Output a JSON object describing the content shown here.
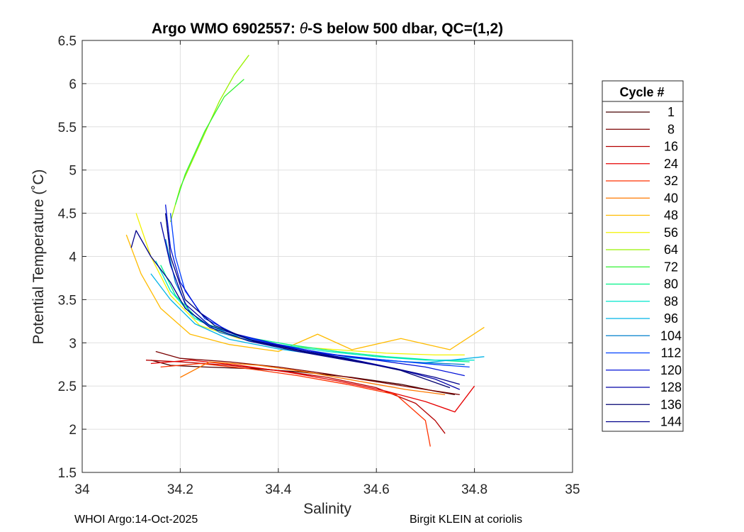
{
  "chart_data": {
    "type": "line",
    "title_prefix": "Argo WMO 6902557: ",
    "title_theta": "θ",
    "title_suffix": "-S below 500 dbar,  QC=(1,2)",
    "xlabel": "Salinity",
    "ylabel": "Potential Temperature (˚C)",
    "xlim": [
      34,
      35
    ],
    "ylim": [
      1.5,
      6.5
    ],
    "xticks": [
      34,
      34.2,
      34.4,
      34.6,
      34.8,
      35
    ],
    "xtick_labels": [
      "34",
      "34.2",
      "34.4",
      "34.6",
      "34.8",
      "35"
    ],
    "yticks": [
      1.5,
      2,
      2.5,
      3,
      3.5,
      4,
      4.5,
      5,
      5.5,
      6,
      6.5
    ],
    "ytick_labels": [
      "1.5",
      "2",
      "2.5",
      "3",
      "3.5",
      "4",
      "4.5",
      "5",
      "5.5",
      "6",
      "6.5"
    ],
    "grid": true,
    "legend_title": "Cycle #",
    "legend_position": "right-outside",
    "series": [
      {
        "name": "1",
        "color": "#460000",
        "points": [
          [
            34.14,
            2.8
          ],
          [
            34.18,
            2.74
          ],
          [
            34.25,
            2.72
          ],
          [
            34.35,
            2.7
          ],
          [
            34.45,
            2.66
          ],
          [
            34.55,
            2.6
          ],
          [
            34.65,
            2.52
          ],
          [
            34.72,
            2.44
          ],
          [
            34.76,
            2.4
          ]
        ]
      },
      {
        "name": "8",
        "color": "#7a0000",
        "points": [
          [
            34.15,
            2.9
          ],
          [
            34.2,
            2.82
          ],
          [
            34.3,
            2.78
          ],
          [
            34.4,
            2.72
          ],
          [
            34.5,
            2.64
          ],
          [
            34.6,
            2.55
          ],
          [
            34.7,
            2.46
          ],
          [
            34.77,
            2.4
          ]
        ]
      },
      {
        "name": "16",
        "color": "#b30000",
        "points": [
          [
            34.13,
            2.8
          ],
          [
            34.2,
            2.78
          ],
          [
            34.3,
            2.74
          ],
          [
            34.4,
            2.68
          ],
          [
            34.5,
            2.6
          ],
          [
            34.6,
            2.48
          ],
          [
            34.68,
            2.3
          ],
          [
            34.72,
            2.1
          ],
          [
            34.74,
            1.95
          ]
        ]
      },
      {
        "name": "24",
        "color": "#e60000",
        "points": [
          [
            34.14,
            2.76
          ],
          [
            34.22,
            2.8
          ],
          [
            34.32,
            2.74
          ],
          [
            34.42,
            2.66
          ],
          [
            34.52,
            2.56
          ],
          [
            34.62,
            2.44
          ],
          [
            34.7,
            2.32
          ],
          [
            34.76,
            2.2
          ],
          [
            34.8,
            2.5
          ]
        ]
      },
      {
        "name": "32",
        "color": "#ff3300",
        "points": [
          [
            34.16,
            2.72
          ],
          [
            34.24,
            2.76
          ],
          [
            34.34,
            2.7
          ],
          [
            34.44,
            2.62
          ],
          [
            34.54,
            2.52
          ],
          [
            34.64,
            2.4
          ],
          [
            34.7,
            2.1
          ],
          [
            34.71,
            1.8
          ]
        ]
      },
      {
        "name": "40",
        "color": "#ff7a00",
        "points": [
          [
            34.2,
            2.6
          ],
          [
            34.26,
            2.78
          ],
          [
            34.36,
            2.74
          ],
          [
            34.46,
            2.66
          ],
          [
            34.56,
            2.56
          ],
          [
            34.66,
            2.46
          ],
          [
            34.74,
            2.4
          ]
        ]
      },
      {
        "name": "48",
        "color": "#ffbb00",
        "points": [
          [
            34.09,
            4.25
          ],
          [
            34.12,
            3.8
          ],
          [
            34.16,
            3.4
          ],
          [
            34.22,
            3.1
          ],
          [
            34.3,
            2.98
          ],
          [
            34.4,
            2.9
          ],
          [
            34.48,
            3.1
          ],
          [
            34.55,
            2.92
          ],
          [
            34.65,
            3.05
          ],
          [
            34.75,
            2.92
          ],
          [
            34.82,
            3.18
          ]
        ]
      },
      {
        "name": "56",
        "color": "#f2f200",
        "points": [
          [
            34.11,
            4.5
          ],
          [
            34.14,
            4.0
          ],
          [
            34.18,
            3.55
          ],
          [
            34.24,
            3.2
          ],
          [
            34.32,
            3.05
          ],
          [
            34.42,
            2.96
          ],
          [
            34.52,
            2.92
          ],
          [
            34.62,
            2.88
          ],
          [
            34.72,
            2.86
          ],
          [
            34.78,
            2.86
          ]
        ]
      },
      {
        "name": "64",
        "color": "#99f200",
        "points": [
          [
            34.18,
            4.4
          ],
          [
            34.2,
            4.8
          ],
          [
            34.24,
            5.3
          ],
          [
            34.28,
            5.8
          ],
          [
            34.31,
            6.1
          ],
          [
            34.34,
            6.33
          ]
        ]
      },
      {
        "name": "72",
        "color": "#33f233",
        "points": [
          [
            34.19,
            4.6
          ],
          [
            34.21,
            4.95
          ],
          [
            34.25,
            5.45
          ],
          [
            34.29,
            5.85
          ],
          [
            34.33,
            6.05
          ]
        ]
      },
      {
        "name": "80",
        "color": "#00f288",
        "points": [
          [
            34.16,
            3.9
          ],
          [
            34.19,
            3.55
          ],
          [
            34.24,
            3.25
          ],
          [
            34.32,
            3.08
          ],
          [
            34.42,
            2.98
          ],
          [
            34.52,
            2.9
          ],
          [
            34.62,
            2.84
          ],
          [
            34.72,
            2.8
          ],
          [
            34.79,
            2.78
          ]
        ]
      },
      {
        "name": "88",
        "color": "#00e6cc",
        "points": [
          [
            34.15,
            3.95
          ],
          [
            34.18,
            3.6
          ],
          [
            34.23,
            3.28
          ],
          [
            34.3,
            3.1
          ],
          [
            34.4,
            2.98
          ],
          [
            34.5,
            2.9
          ],
          [
            34.6,
            2.84
          ],
          [
            34.7,
            2.8
          ],
          [
            34.8,
            2.8
          ]
        ]
      },
      {
        "name": "96",
        "color": "#00b3e6",
        "points": [
          [
            34.14,
            3.8
          ],
          [
            34.18,
            3.5
          ],
          [
            34.23,
            3.22
          ],
          [
            34.3,
            3.04
          ],
          [
            34.4,
            2.93
          ],
          [
            34.5,
            2.85
          ],
          [
            34.6,
            2.8
          ],
          [
            34.7,
            2.77
          ],
          [
            34.82,
            2.84
          ]
        ]
      },
      {
        "name": "104",
        "color": "#0080cc",
        "points": [
          [
            34.17,
            4.2
          ],
          [
            34.19,
            3.7
          ],
          [
            34.22,
            3.35
          ],
          [
            34.28,
            3.12
          ],
          [
            34.36,
            3.0
          ],
          [
            34.46,
            2.9
          ],
          [
            34.56,
            2.83
          ],
          [
            34.66,
            2.78
          ],
          [
            34.78,
            2.75
          ]
        ]
      },
      {
        "name": "112",
        "color": "#0040ff",
        "points": [
          [
            34.18,
            4.5
          ],
          [
            34.19,
            4.0
          ],
          [
            34.21,
            3.6
          ],
          [
            34.25,
            3.28
          ],
          [
            34.32,
            3.08
          ],
          [
            34.42,
            2.95
          ],
          [
            34.52,
            2.86
          ],
          [
            34.62,
            2.8
          ],
          [
            34.72,
            2.75
          ],
          [
            34.79,
            2.72
          ]
        ]
      },
      {
        "name": "120",
        "color": "#0010d9",
        "points": [
          [
            34.17,
            4.6
          ],
          [
            34.18,
            4.1
          ],
          [
            34.2,
            3.7
          ],
          [
            34.24,
            3.35
          ],
          [
            34.3,
            3.12
          ],
          [
            34.4,
            2.98
          ],
          [
            34.5,
            2.87
          ],
          [
            34.6,
            2.8
          ],
          [
            34.7,
            2.72
          ],
          [
            34.78,
            2.62
          ]
        ]
      },
      {
        "name": "128",
        "color": "#0000a8",
        "points": [
          [
            34.16,
            4.4
          ],
          [
            34.18,
            3.9
          ],
          [
            34.21,
            3.45
          ],
          [
            34.26,
            3.2
          ],
          [
            34.34,
            3.04
          ],
          [
            34.44,
            2.92
          ],
          [
            34.54,
            2.82
          ],
          [
            34.64,
            2.7
          ],
          [
            34.72,
            2.58
          ],
          [
            34.77,
            2.46
          ]
        ]
      },
      {
        "name": "136",
        "color": "#000070",
        "points": [
          [
            34.17,
            4.5
          ],
          [
            34.18,
            4.0
          ],
          [
            34.21,
            3.5
          ],
          [
            34.27,
            3.2
          ],
          [
            34.35,
            3.02
          ],
          [
            34.45,
            2.9
          ],
          [
            34.55,
            2.8
          ],
          [
            34.65,
            2.68
          ],
          [
            34.75,
            2.48
          ]
        ]
      },
      {
        "name": "144",
        "color": "#00008b",
        "points": [
          [
            34.1,
            4.1
          ],
          [
            34.11,
            4.3
          ],
          [
            34.14,
            4.0
          ],
          [
            34.18,
            3.7
          ],
          [
            34.21,
            3.4
          ],
          [
            34.26,
            3.18
          ],
          [
            34.34,
            3.02
          ],
          [
            34.44,
            2.9
          ],
          [
            34.54,
            2.8
          ],
          [
            34.64,
            2.7
          ],
          [
            34.72,
            2.6
          ],
          [
            34.77,
            2.52
          ]
        ]
      }
    ]
  },
  "footer": {
    "left": "WHOI Argo:14-Oct-2025",
    "right": "Birgit KLEIN at coriolis"
  }
}
